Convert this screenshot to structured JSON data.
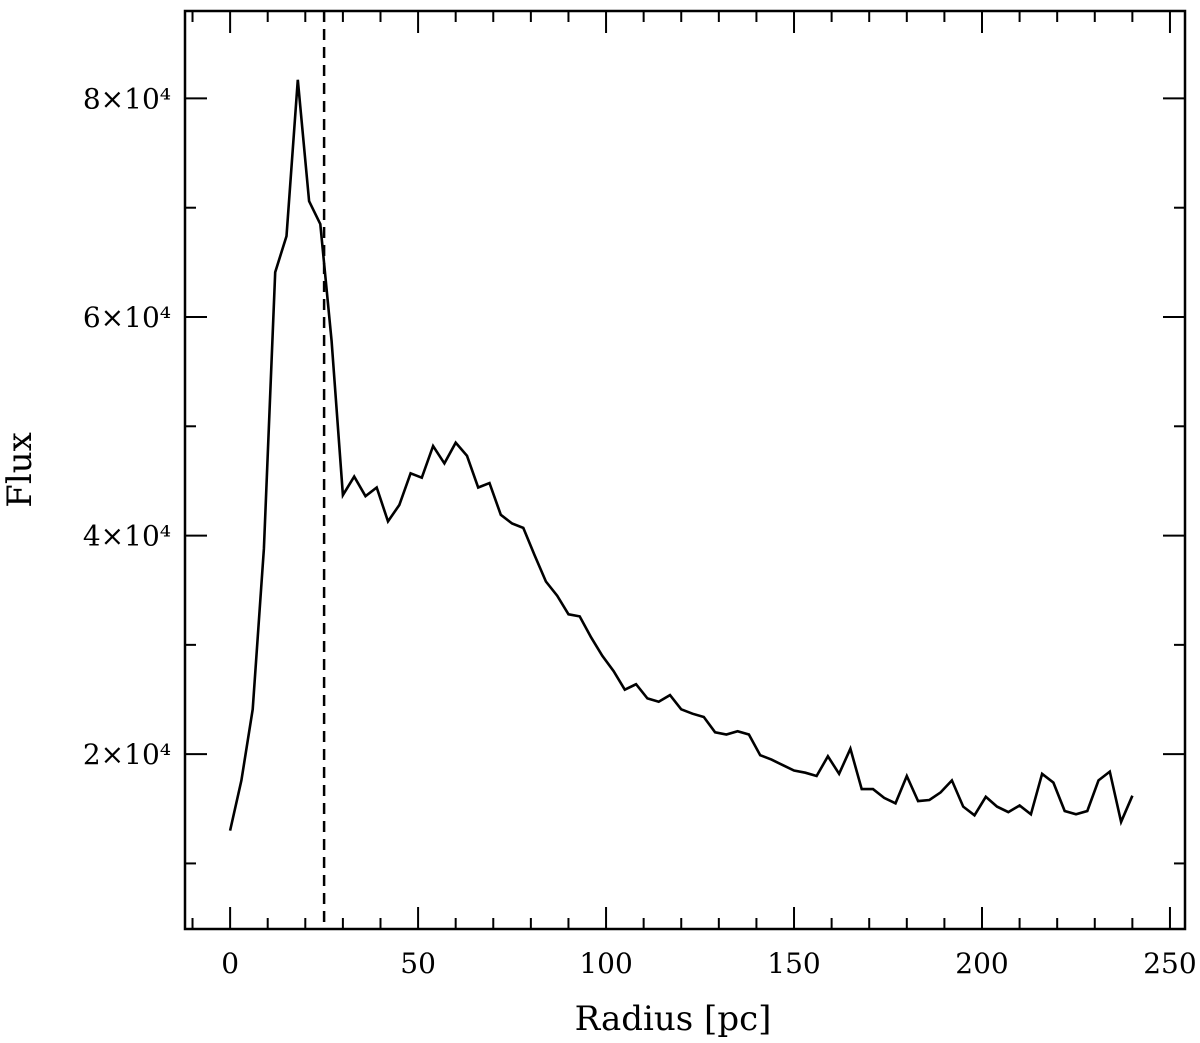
{
  "chart_data": {
    "type": "line",
    "title": "",
    "xlabel": "Radius [pc]",
    "ylabel": "Flux",
    "xlim": [
      -12,
      254
    ],
    "ylim": [
      4000,
      88000
    ],
    "x_major_ticks": [
      0,
      50,
      100,
      150,
      200,
      250
    ],
    "x_minor_step": 10,
    "y_major_ticks": [
      20000,
      40000,
      60000,
      80000
    ],
    "y_tick_labels": [
      "2×10⁴",
      "4×10⁴",
      "6×10⁴",
      "8×10⁴"
    ],
    "y_minor_step": 10000,
    "grid": false,
    "line_color": "#000000",
    "marker_line": {
      "x": 25,
      "style": "dashed",
      "color": "#000000"
    },
    "series": [
      {
        "x": [
          0,
          3,
          6,
          9,
          12,
          15,
          18,
          21,
          24,
          27,
          30,
          33,
          36,
          39,
          42,
          45,
          48,
          51,
          54,
          57,
          60,
          63,
          66,
          69,
          72,
          75,
          78,
          81,
          84,
          87,
          90,
          93,
          96,
          99,
          102,
          105,
          108,
          111,
          114,
          117,
          120,
          123,
          126,
          129,
          132,
          135,
          138,
          141,
          144,
          147,
          150,
          153,
          156,
          159,
          162,
          165,
          168,
          171,
          174,
          177,
          180,
          183,
          186,
          189,
          192,
          195,
          198,
          201,
          204,
          207,
          210,
          213,
          216,
          219,
          222,
          225,
          228,
          231,
          234,
          237,
          240
        ],
        "values": [
          13000,
          17600,
          24100,
          38800,
          64100,
          67400,
          81700,
          70600,
          68500,
          57800,
          43700,
          45400,
          43600,
          44400,
          41300,
          42800,
          45700,
          45300,
          48200,
          46600,
          48500,
          47300,
          44400,
          44800,
          41900,
          41100,
          40700,
          38200,
          35800,
          34500,
          32800,
          32600,
          30700,
          29000,
          27600,
          25900,
          26400,
          25100,
          24800,
          25400,
          24100,
          23700,
          23400,
          22000,
          21800,
          22100,
          21800,
          19900,
          19500,
          19000,
          18500,
          18300,
          18000,
          19800,
          18200,
          20500,
          16800,
          16800,
          16000,
          15500,
          18000,
          15700,
          15800,
          16500,
          17600,
          15200,
          14400,
          16100,
          15200,
          14700,
          15300,
          14500,
          18200,
          17400,
          14800,
          14500,
          14800,
          17600,
          18400,
          13800,
          16200
        ]
      }
    ]
  }
}
